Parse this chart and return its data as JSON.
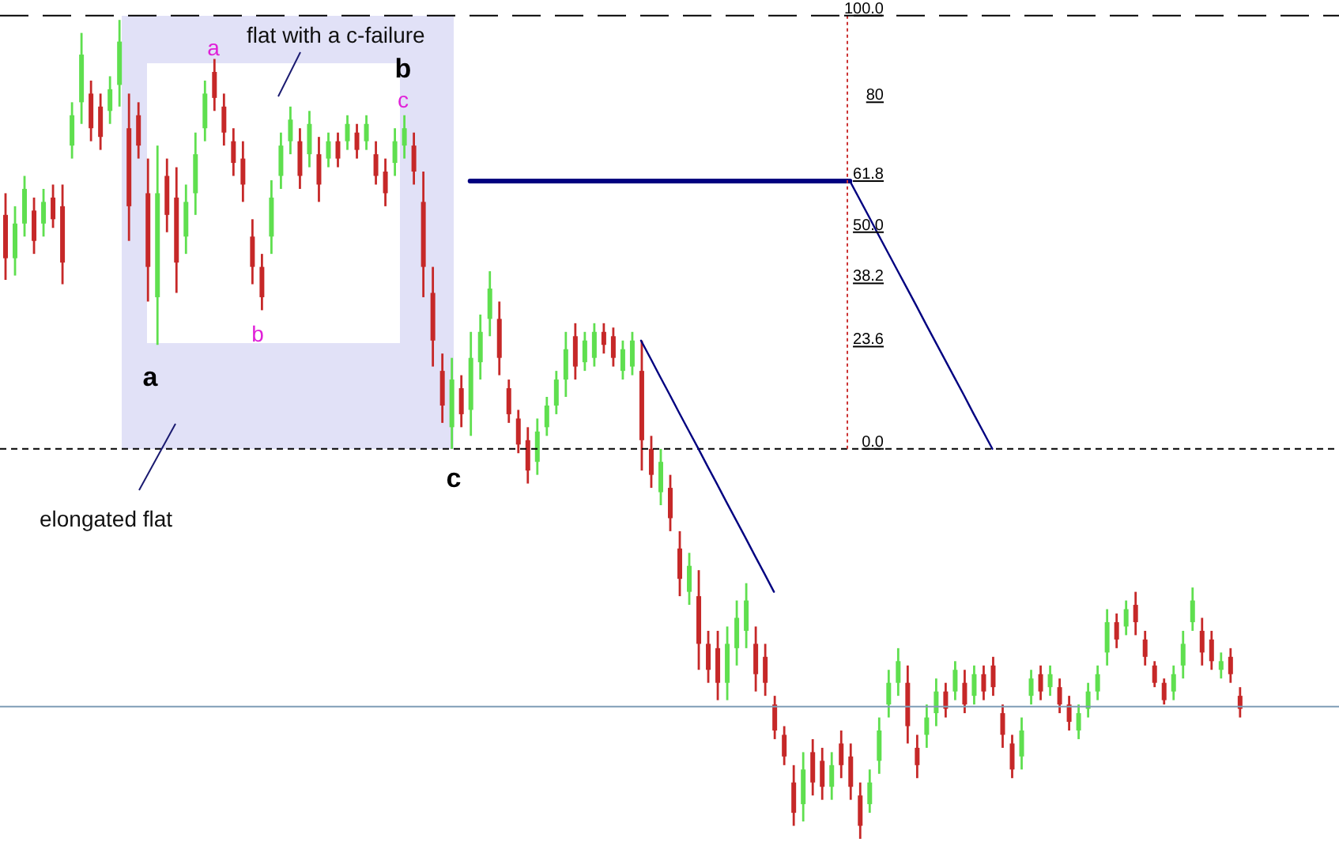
{
  "chart_data": {
    "type": "candlestick",
    "categories": [
      null,
      null,
      null,
      null,
      null,
      null,
      null,
      null,
      null,
      null,
      null,
      null,
      null,
      null,
      null,
      null,
      null,
      null,
      null,
      null,
      null,
      null,
      null,
      null,
      null,
      null,
      null,
      null,
      null,
      null,
      null,
      null,
      null,
      null,
      null,
      null,
      null,
      null,
      null,
      null,
      null,
      null,
      null,
      null,
      null,
      null,
      null,
      null,
      null,
      null,
      null,
      null,
      null,
      null,
      null,
      null,
      null,
      null,
      null,
      null,
      null,
      null,
      null,
      null,
      null,
      null,
      null,
      null,
      null,
      null,
      null,
      null,
      null,
      null,
      null,
      null,
      null,
      null,
      null,
      null,
      null,
      null,
      null,
      null,
      null,
      null,
      null,
      null,
      null,
      null,
      null,
      null,
      null,
      null,
      null,
      null,
      null,
      null,
      null,
      null,
      null,
      null,
      null,
      null,
      null,
      null,
      null,
      null,
      null,
      null,
      null,
      null,
      null,
      null,
      null,
      null,
      null,
      null,
      null,
      null,
      null,
      null,
      null,
      null,
      null,
      null,
      null,
      null,
      null,
      null,
      null,
      null,
      null,
      null,
      null,
      null,
      null,
      null,
      null,
      null,
      null
    ],
    "ohlc": [
      [
        54,
        59,
        39,
        44
      ],
      [
        44,
        56,
        40,
        52
      ],
      [
        52,
        63,
        49,
        60
      ],
      [
        55,
        58,
        45,
        48
      ],
      [
        52,
        60,
        49,
        57
      ],
      [
        58,
        61,
        51,
        53
      ],
      [
        56,
        61,
        38,
        43
      ],
      [
        70,
        80,
        67,
        77
      ],
      [
        80,
        96,
        75,
        91
      ],
      [
        82,
        85,
        71,
        74
      ],
      [
        79,
        82,
        69,
        72
      ],
      [
        78,
        86,
        75,
        83
      ],
      [
        84,
        99,
        79,
        94
      ],
      [
        74,
        82,
        48,
        56
      ],
      [
        77,
        80,
        67,
        70
      ],
      [
        59,
        67,
        34,
        42
      ],
      [
        35,
        70,
        24,
        59
      ],
      [
        63,
        67,
        50,
        54
      ],
      [
        58,
        65,
        36,
        43
      ],
      [
        49,
        61,
        45,
        57
      ],
      [
        59,
        73,
        54,
        68
      ],
      [
        74,
        85,
        71,
        82
      ],
      [
        87,
        90,
        78,
        81
      ],
      [
        79,
        82,
        70,
        73
      ],
      [
        71,
        74,
        63,
        66
      ],
      [
        67,
        71,
        57,
        61
      ],
      [
        49,
        53,
        38,
        42
      ],
      [
        42,
        45,
        32,
        35
      ],
      [
        49,
        62,
        45,
        58
      ],
      [
        63,
        73,
        60,
        70
      ],
      [
        71,
        79,
        68,
        76
      ],
      [
        71,
        74,
        60,
        63
      ],
      [
        68,
        78,
        65,
        75
      ],
      [
        68,
        72,
        57,
        61
      ],
      [
        67,
        73,
        65,
        71
      ],
      [
        71,
        73,
        65,
        67
      ],
      [
        71,
        77,
        69,
        75
      ],
      [
        73,
        75,
        67,
        69
      ],
      [
        71,
        77,
        69,
        75
      ],
      [
        68,
        71,
        61,
        63
      ],
      [
        64,
        67,
        56,
        59
      ],
      [
        66,
        74,
        63,
        71
      ],
      [
        70,
        77,
        67,
        74
      ],
      [
        70,
        73,
        61,
        64
      ],
      [
        57,
        64,
        35,
        42
      ],
      [
        36,
        42,
        19,
        25
      ],
      [
        18,
        22,
        6,
        10
      ],
      [
        5,
        21,
        0,
        16
      ],
      [
        14,
        17,
        5,
        8
      ],
      [
        9,
        27,
        3,
        21
      ],
      [
        20,
        31,
        16,
        27
      ],
      [
        30,
        41,
        26,
        37
      ],
      [
        30,
        34,
        17,
        21
      ],
      [
        14,
        16,
        6,
        8
      ],
      [
        7,
        9,
        -1,
        1
      ],
      [
        2,
        5,
        -8,
        -5
      ],
      [
        -3,
        7,
        -6,
        4
      ],
      [
        5,
        12,
        3,
        10
      ],
      [
        10,
        18,
        8,
        16
      ],
      [
        16,
        27,
        12,
        23
      ],
      [
        26,
        29,
        16,
        19
      ],
      [
        20,
        27,
        18,
        25
      ],
      [
        21,
        29,
        19,
        27
      ],
      [
        27,
        29,
        22,
        24
      ],
      [
        26,
        28,
        19,
        21
      ],
      [
        18,
        25,
        16,
        23
      ],
      [
        19,
        27,
        17,
        25
      ],
      [
        18,
        25,
        -5,
        2
      ],
      [
        0,
        3,
        -9,
        -6
      ],
      [
        -10,
        0,
        -13,
        -3
      ],
      [
        -9,
        -6,
        -19,
        -16
      ],
      [
        -23,
        -19,
        -34,
        -30
      ],
      [
        -33,
        -24,
        -36,
        -27
      ],
      [
        -34,
        -28,
        -51,
        -45
      ],
      [
        -45,
        -42,
        -54,
        -51
      ],
      [
        -46,
        -42,
        -58,
        -54
      ],
      [
        -54,
        -41,
        -58,
        -45
      ],
      [
        -46,
        -35,
        -50,
        -39
      ],
      [
        -42,
        -31,
        -46,
        -35
      ],
      [
        -45,
        -41,
        -56,
        -52
      ],
      [
        -48,
        -45,
        -57,
        -54
      ],
      [
        -59,
        -57,
        -67,
        -65
      ],
      [
        -66,
        -64,
        -73,
        -71
      ],
      [
        -77,
        -73,
        -87,
        -84
      ],
      [
        -82,
        -70,
        -86,
        -74
      ],
      [
        -70,
        -67,
        -80,
        -77
      ],
      [
        -72,
        -69,
        -81,
        -78
      ],
      [
        -78,
        -70,
        -81,
        -73
      ],
      [
        -68,
        -65,
        -76,
        -73
      ],
      [
        -71,
        -68,
        -81,
        -78
      ],
      [
        -80,
        -77,
        -90,
        -87
      ],
      [
        -82,
        -74,
        -84,
        -77
      ],
      [
        -72,
        -62,
        -75,
        -65
      ],
      [
        -59,
        -51,
        -62,
        -54
      ],
      [
        -54,
        -46,
        -57,
        -49
      ],
      [
        -54,
        -50,
        -68,
        -64
      ],
      [
        -69,
        -66,
        -76,
        -73
      ],
      [
        -66,
        -59,
        -69,
        -62
      ],
      [
        -61,
        -53,
        -64,
        -56
      ],
      [
        -56,
        -54,
        -62,
        -60
      ],
      [
        -56,
        -49,
        -58,
        -51
      ],
      [
        -54,
        -51,
        -61,
        -59
      ],
      [
        -57,
        -50,
        -59,
        -52
      ],
      [
        -52,
        -50,
        -58,
        -56
      ],
      [
        -50,
        -48,
        -57,
        -55
      ],
      [
        -61,
        -59,
        -69,
        -66
      ],
      [
        -68,
        -66,
        -76,
        -74
      ],
      [
        -71,
        -62,
        -74,
        -65
      ],
      [
        -57,
        -51,
        -59,
        -53
      ],
      [
        -52,
        -50,
        -58,
        -56
      ],
      [
        -55,
        -50,
        -57,
        -52
      ],
      [
        -55,
        -53,
        -61,
        -59
      ],
      [
        -59,
        -57,
        -65,
        -63
      ],
      [
        -65,
        -59,
        -67,
        -61
      ],
      [
        -60,
        -54,
        -62,
        -56
      ],
      [
        -56,
        -50,
        -58,
        -52
      ],
      [
        -47,
        -37,
        -50,
        -40
      ],
      [
        -40,
        -38,
        -46,
        -44
      ],
      [
        -41,
        -35,
        -43,
        -37
      ],
      [
        -36,
        -33,
        -43,
        -40
      ],
      [
        -44,
        -42,
        -50,
        -48
      ],
      [
        -50,
        -49,
        -55,
        -54
      ],
      [
        -54,
        -53,
        -59,
        -58
      ],
      [
        -56,
        -50,
        -58,
        -52
      ],
      [
        -50,
        -42,
        -53,
        -45
      ],
      [
        -40,
        -32,
        -42,
        -35
      ],
      [
        -42,
        -39,
        -50,
        -47
      ],
      [
        -44,
        -42,
        -51,
        -49
      ],
      [
        -51,
        -47,
        -53,
        -49
      ],
      [
        -48,
        -46,
        -54,
        -52
      ],
      [
        -57,
        -55,
        -62,
        -60
      ],
      null,
      null,
      null,
      null,
      null,
      null,
      null,
      null,
      null,
      null
    ],
    "colors": [
      "#c62828",
      "#5fdf4f",
      "#5fdf4f",
      "#c62828",
      "#5fdf4f",
      "#c62828",
      "#c62828",
      "#5fdf4f",
      "#5fdf4f",
      "#c62828",
      "#c62828",
      "#5fdf4f",
      "#5fdf4f",
      "#c62828",
      "#c62828",
      "#c62828",
      "#5fdf4f",
      "#c62828",
      "#c62828",
      "#5fdf4f",
      "#5fdf4f",
      "#5fdf4f",
      "#c62828",
      "#c62828",
      "#c62828",
      "#c62828",
      "#c62828",
      "#c62828",
      "#5fdf4f",
      "#5fdf4f",
      "#5fdf4f",
      "#c62828",
      "#5fdf4f",
      "#c62828",
      "#5fdf4f",
      "#c62828",
      "#5fdf4f",
      "#c62828",
      "#5fdf4f",
      "#c62828",
      "#c62828",
      "#5fdf4f",
      "#5fdf4f",
      "#c62828",
      "#c62828",
      "#c62828",
      "#c62828",
      "#5fdf4f",
      "#c62828",
      "#5fdf4f",
      "#5fdf4f",
      "#5fdf4f",
      "#c62828",
      "#c62828",
      "#c62828",
      "#c62828",
      "#5fdf4f",
      "#5fdf4f",
      "#5fdf4f",
      "#5fdf4f",
      "#c62828",
      "#5fdf4f",
      "#5fdf4f",
      "#c62828",
      "#c62828",
      "#5fdf4f",
      "#5fdf4f",
      "#c62828",
      "#c62828",
      "#5fdf4f",
      "#c62828",
      "#c62828",
      "#5fdf4f",
      "#c62828",
      "#c62828",
      "#c62828",
      "#5fdf4f",
      "#5fdf4f",
      "#5fdf4f",
      "#c62828",
      "#c62828",
      "#c62828",
      "#c62828",
      "#c62828",
      "#5fdf4f",
      "#c62828",
      "#c62828",
      "#5fdf4f",
      "#c62828",
      "#c62828",
      "#c62828",
      "#5fdf4f",
      "#5fdf4f",
      "#5fdf4f",
      "#5fdf4f",
      "#c62828",
      "#c62828",
      "#5fdf4f",
      "#5fdf4f",
      "#c62828",
      "#5fdf4f",
      "#c62828",
      "#5fdf4f",
      "#c62828",
      "#c62828",
      "#c62828",
      "#c62828",
      "#5fdf4f",
      "#5fdf4f",
      "#c62828",
      "#5fdf4f",
      "#c62828",
      "#c62828",
      "#5fdf4f",
      "#5fdf4f",
      "#5fdf4f",
      "#5fdf4f",
      "#c62828",
      "#5fdf4f",
      "#c62828",
      "#c62828",
      "#c62828",
      "#c62828",
      "#5fdf4f",
      "#5fdf4f",
      "#5fdf4f",
      "#c62828",
      "#c62828",
      "#5fdf4f",
      "#c62828",
      "#c62828",
      null,
      null,
      null,
      null,
      null,
      null,
      null,
      null,
      null,
      null
    ],
    "series": [
      {
        "type": "line",
        "color": "#000080",
        "values": [
          null,
          null,
          null,
          null,
          null,
          null,
          null,
          null,
          null,
          null,
          null,
          null,
          null,
          null,
          null,
          null,
          null,
          null,
          null,
          null,
          null,
          null,
          null,
          null,
          null,
          null,
          null,
          null,
          null,
          null,
          null,
          null,
          null,
          null,
          null,
          null,
          null,
          null,
          null,
          null,
          null,
          null,
          null,
          null,
          null,
          null,
          null,
          null,
          null,
          61.8,
          61.8,
          61.8,
          61.8,
          61.8,
          61.8,
          61.8,
          61.8,
          61.8,
          61.8,
          61.8,
          61.8,
          61.8,
          61.8,
          61.8,
          61.8,
          61.8,
          61.8,
          61.8,
          61.8,
          61.8,
          61.8,
          61.8,
          61.8,
          61.8,
          61.8,
          61.8,
          61.8,
          61.8,
          61.8,
          61.8,
          61.8,
          61.8,
          61.8,
          61.8,
          61.8,
          61.8,
          61.8,
          61.8,
          61.8,
          61.8,
          null,
          null,
          null,
          null,
          null,
          null,
          null,
          null,
          null,
          null,
          null,
          null,
          null,
          null,
          null,
          null,
          null,
          null,
          null,
          null,
          null,
          null,
          null,
          null,
          null,
          null,
          null,
          null,
          null,
          null,
          null,
          null,
          null,
          null,
          null,
          null,
          null,
          null,
          null,
          null,
          null,
          null,
          null,
          null,
          null,
          null,
          null,
          null,
          null,
          null,
          null
        ]
      },
      {
        "type": "line",
        "color": "#000080",
        "values": [
          null,
          null,
          null,
          null,
          null,
          null,
          null,
          null,
          null,
          null,
          null,
          null,
          null,
          null,
          null,
          null,
          null,
          null,
          null,
          null,
          null,
          null,
          null,
          null,
          null,
          null,
          null,
          null,
          null,
          null,
          null,
          null,
          null,
          null,
          null,
          null,
          null,
          null,
          null,
          null,
          null,
          null,
          null,
          null,
          null,
          null,
          null,
          null,
          null,
          null,
          null,
          null,
          null,
          null,
          null,
          null,
          null,
          null,
          null,
          null,
          null,
          null,
          null,
          null,
          null,
          null,
          null,
          25.0,
          20.9,
          16.7,
          12.6,
          8.4,
          4.3,
          0.2,
          -4.0,
          -8.1,
          -12.3,
          -16.4,
          -20.5,
          -24.7,
          -28.8,
          -33.0,
          null,
          null,
          null,
          null,
          null,
          null,
          null,
          null,
          null,
          null,
          null,
          null,
          null,
          null,
          null,
          null,
          null,
          null,
          null,
          null,
          null,
          null,
          null,
          null,
          null,
          null,
          null,
          null,
          null,
          null,
          null,
          null,
          null,
          null,
          null,
          null,
          null,
          null,
          null,
          null,
          null,
          null,
          null,
          null,
          null,
          null,
          null,
          null,
          null,
          null,
          null,
          null,
          null,
          null,
          null,
          null,
          null,
          null,
          null
        ]
      },
      {
        "type": "line",
        "color": "#000080",
        "values": [
          null,
          null,
          null,
          null,
          null,
          null,
          null,
          null,
          null,
          null,
          null,
          null,
          null,
          null,
          null,
          null,
          null,
          null,
          null,
          null,
          null,
          null,
          null,
          null,
          null,
          null,
          null,
          null,
          null,
          null,
          null,
          null,
          null,
          null,
          null,
          null,
          null,
          null,
          null,
          null,
          null,
          null,
          null,
          null,
          null,
          null,
          null,
          null,
          null,
          null,
          null,
          null,
          null,
          null,
          null,
          null,
          null,
          null,
          null,
          null,
          null,
          null,
          null,
          null,
          null,
          null,
          null,
          null,
          null,
          null,
          null,
          null,
          null,
          null,
          null,
          null,
          null,
          null,
          null,
          null,
          null,
          null,
          null,
          null,
          null,
          null,
          null,
          null,
          null,
          61.8,
          57.7,
          53.6,
          49.4,
          45.3,
          41.2,
          37.1,
          33.0,
          28.8,
          24.7,
          20.6,
          16.5,
          12.4,
          8.2,
          4.1,
          0,
          null,
          null,
          null,
          null,
          null,
          null,
          null,
          null,
          null,
          null,
          null,
          null,
          null,
          null,
          null,
          null,
          null,
          null,
          null,
          null,
          null,
          null,
          null,
          null,
          null,
          null,
          null,
          null,
          null,
          null,
          null,
          null,
          null,
          null,
          null,
          null
        ]
      }
    ],
    "ylim": [
      -94.2,
      103.6
    ],
    "yticks": [
      {
        "value": 0,
        "label": "0.0"
      },
      23.6,
      38.2,
      {
        "value": 50,
        "label": "50.0"
      },
      61.8,
      80,
      {
        "value": 100,
        "label": "100.0"
      }
    ],
    "tick_labels": "y",
    "ref_lines": [
      {
        "axis": "y",
        "value": 100,
        "color": "#000000",
        "line_style": "dashed"
      },
      {
        "axis": "y",
        "value": 0,
        "color": "#000000",
        "line_style": "dotted"
      },
      {
        "axis": "y",
        "value": -59.5,
        "color": "#7f9cb6",
        "line_style": "solid"
      }
    ],
    "annotations": [
      "flat with a c-failure",
      "elongated flat",
      "a",
      "b",
      "c",
      "a",
      "b",
      "c"
    ]
  }
}
